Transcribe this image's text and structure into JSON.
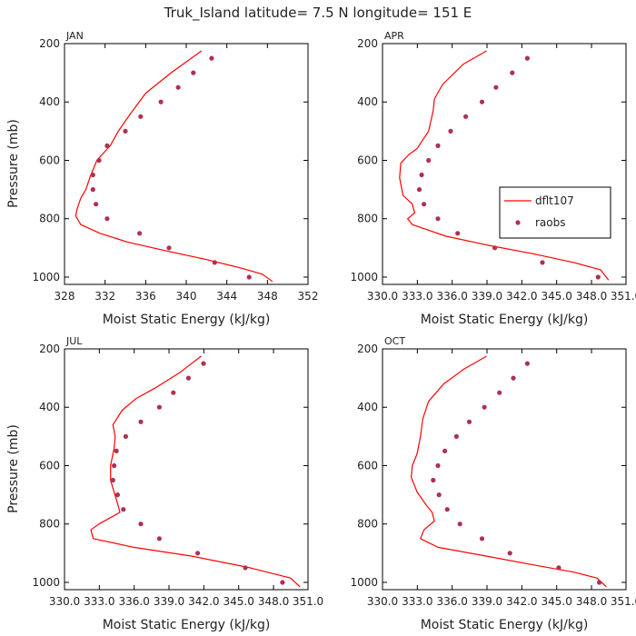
{
  "figure": {
    "title": "Truk_Island  latitude= 7.5 N longitude= 151 E"
  },
  "colors": {
    "model": "#ff0000",
    "obs": "#b03050",
    "axis": "#000000"
  },
  "legend": {
    "model_label": "dflt107",
    "obs_label": "raobs"
  },
  "chart_data": [
    {
      "type": "line",
      "title": "JAN",
      "xlabel": "Moist Static Energy (kJ/kg)",
      "ylabel": "Pressure (mb)",
      "xlim": [
        328,
        352
      ],
      "ylim": [
        1025,
        200
      ],
      "xticks": [
        328,
        332,
        336,
        340,
        344,
        348,
        352
      ],
      "xtick_labels": [
        "328",
        "332",
        "336",
        "340",
        "344",
        "348",
        "352"
      ],
      "yticks": [
        200,
        400,
        600,
        800,
        1000
      ],
      "ytick_labels": [
        "200",
        "400",
        "600",
        "800",
        "1000"
      ],
      "series": [
        {
          "kind": "line",
          "x": [
            341.5,
            338.5,
            336.0,
            334.5,
            333.3,
            332.5,
            331.7,
            331.2,
            330.6,
            330.1,
            329.6,
            329.3,
            329.1,
            329.6,
            331.5,
            334.2,
            338.0,
            342.0,
            345.5,
            347.5,
            348.5
          ],
          "y": [
            225,
            300,
            370,
            440,
            500,
            550,
            580,
            600,
            650,
            700,
            730,
            760,
            790,
            820,
            850,
            880,
            910,
            940,
            970,
            990,
            1015
          ]
        },
        {
          "kind": "scatter",
          "x": [
            342.5,
            340.7,
            339.2,
            337.5,
            335.5,
            334.0,
            332.2,
            331.4,
            330.8,
            330.8,
            331.1,
            332.2,
            335.4,
            338.3,
            342.8,
            346.2
          ],
          "y": [
            250,
            300,
            350,
            400,
            450,
            500,
            550,
            600,
            650,
            700,
            750,
            800,
            850,
            900,
            950,
            1000
          ]
        }
      ]
    },
    {
      "type": "line",
      "title": "APR",
      "xlabel": "Moist Static Energy (kJ/kg)",
      "ylabel": "",
      "xlim": [
        330.03,
        351.0
      ],
      "ylim": [
        1025,
        200
      ],
      "xticks": [
        330.03,
        333.03,
        336.03,
        339.03,
        342.03,
        345.03,
        348.03,
        351.0
      ],
      "xtick_labels": [
        "330.0",
        "333.0",
        "336.0",
        "339.0",
        "342.0",
        "345.0",
        "348.0",
        "351.0"
      ],
      "yticks": [
        200,
        400,
        600,
        800,
        1000
      ],
      "ytick_labels": [
        "200",
        "400",
        "600",
        "800",
        "1000"
      ],
      "series": [
        {
          "kind": "line",
          "x": [
            339.0,
            337.0,
            335.2,
            334.5,
            334.4,
            334.0,
            333.0,
            332.3,
            331.6,
            331.5,
            331.8,
            332.6,
            332.8,
            332.2,
            332.6,
            335.5,
            339.0,
            343.0,
            346.5,
            348.8,
            349.5
          ],
          "y": [
            225,
            270,
            340,
            390,
            430,
            500,
            560,
            580,
            610,
            660,
            720,
            750,
            780,
            800,
            820,
            860,
            890,
            920,
            950,
            975,
            1010
          ]
        },
        {
          "kind": "scatter",
          "x": [
            342.5,
            341.2,
            339.8,
            338.6,
            337.2,
            335.9,
            334.8,
            334.0,
            333.4,
            333.2,
            333.6,
            334.8,
            336.5,
            339.7,
            343.8,
            348.6
          ],
          "y": [
            250,
            300,
            350,
            400,
            450,
            500,
            550,
            600,
            650,
            700,
            750,
            800,
            850,
            900,
            950,
            1000
          ]
        }
      ]
    },
    {
      "type": "line",
      "title": "JUL",
      "xlabel": "Moist Static Energy (kJ/kg)",
      "ylabel": "Pressure (mb)",
      "xlim": [
        330.03,
        351.0
      ],
      "ylim": [
        1025,
        200
      ],
      "xticks": [
        330.03,
        333.03,
        336.03,
        339.03,
        342.03,
        345.03,
        348.03,
        351.0
      ],
      "xtick_labels": [
        "330.0",
        "333.0",
        "336.0",
        "339.0",
        "342.0",
        "345.0",
        "348.0",
        "351.0"
      ],
      "yticks": [
        200,
        400,
        600,
        800,
        1000
      ],
      "ytick_labels": [
        "200",
        "400",
        "600",
        "800",
        "1000"
      ],
      "series": [
        {
          "kind": "line",
          "x": [
            341.8,
            340.0,
            338.0,
            336.2,
            335.0,
            334.2,
            334.4,
            334.3,
            334.0,
            334.0,
            334.3,
            334.6,
            334.8,
            333.0,
            332.3,
            332.5,
            336.0,
            341.0,
            346.0,
            349.5,
            350.3
          ],
          "y": [
            225,
            280,
            330,
            370,
            410,
            460,
            500,
            540,
            600,
            650,
            690,
            730,
            760,
            800,
            820,
            850,
            880,
            910,
            950,
            985,
            1015
          ]
        },
        {
          "kind": "scatter",
          "x": [
            342.0,
            340.7,
            339.4,
            338.2,
            336.6,
            335.3,
            334.5,
            334.3,
            334.2,
            334.6,
            335.1,
            336.6,
            338.2,
            341.5,
            345.6,
            348.8
          ],
          "y": [
            250,
            300,
            350,
            400,
            450,
            500,
            550,
            600,
            650,
            700,
            750,
            800,
            850,
            900,
            950,
            1000
          ]
        }
      ]
    },
    {
      "type": "line",
      "title": "OCT",
      "xlabel": "Moist Static Energy (kJ/kg)",
      "ylabel": "",
      "xlim": [
        330.03,
        351.0
      ],
      "ylim": [
        1025,
        200
      ],
      "xticks": [
        330.03,
        333.03,
        336.03,
        339.03,
        342.03,
        345.03,
        348.03,
        351.0
      ],
      "xtick_labels": [
        "330.0",
        "333.0",
        "336.0",
        "339.0",
        "342.0",
        "345.0",
        "348.0",
        "351.0"
      ],
      "yticks": [
        200,
        400,
        600,
        800,
        1000
      ],
      "ytick_labels": [
        "200",
        "400",
        "600",
        "800",
        "1000"
      ],
      "series": [
        {
          "kind": "line",
          "x": [
            339.0,
            337.0,
            335.3,
            334.0,
            333.5,
            333.3,
            333.0,
            332.6,
            332.5,
            333.0,
            333.7,
            334.3,
            334.5,
            333.6,
            333.3,
            334.8,
            339.0,
            343.0,
            346.5,
            348.5,
            349.3
          ],
          "y": [
            225,
            270,
            320,
            380,
            440,
            500,
            560,
            600,
            640,
            690,
            730,
            760,
            790,
            820,
            850,
            880,
            910,
            940,
            965,
            985,
            1015
          ]
        },
        {
          "kind": "scatter",
          "x": [
            342.5,
            341.3,
            340.1,
            338.8,
            337.5,
            336.4,
            335.4,
            334.8,
            334.4,
            334.9,
            335.6,
            336.7,
            338.6,
            341.0,
            345.2,
            348.7
          ],
          "y": [
            250,
            300,
            350,
            400,
            450,
            500,
            550,
            600,
            650,
            700,
            750,
            800,
            850,
            900,
            950,
            1000
          ]
        }
      ]
    }
  ]
}
